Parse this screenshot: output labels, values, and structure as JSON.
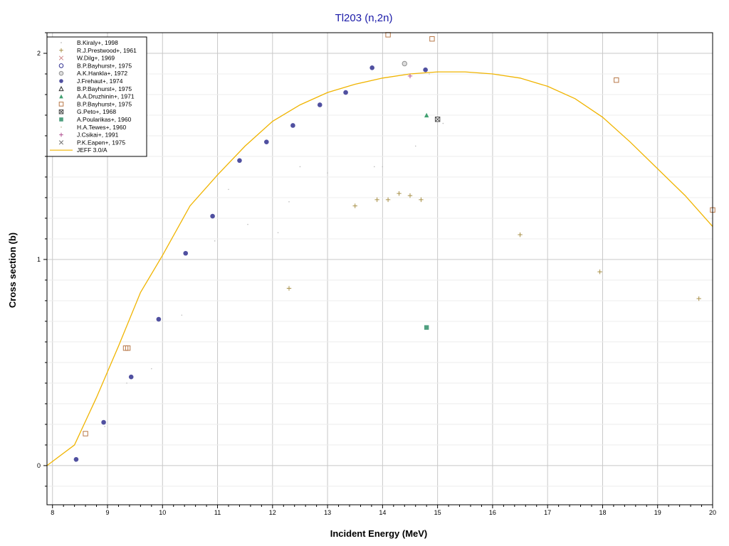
{
  "chart_data": {
    "type": "scatter",
    "title": "Tl203 (n,2n)",
    "xlabel": "Incident Energy (MeV)",
    "ylabel": "Cross section (b)",
    "xlim": [
      7.9,
      20
    ],
    "ylim": [
      -0.19,
      2.1
    ],
    "x_ticks": [
      "8",
      "9",
      "10",
      "11",
      "12",
      "13",
      "14",
      "15",
      "16",
      "17",
      "18",
      "19",
      "20"
    ],
    "y_ticks": [
      "0",
      "1",
      "2"
    ],
    "grid": true,
    "legend_position": "top-left",
    "colors": {
      "title": "#1a1aa8",
      "grid": "#c8c8c8",
      "axis": "#000000"
    },
    "series": [
      {
        "name": "B.Kiraly+, 1998",
        "marker": "dot",
        "color": "#bcbcbc",
        "points": [
          [
            8.42,
            0.02
          ],
          [
            8.95,
            0.19
          ],
          [
            9.35,
            0.4
          ],
          [
            9.8,
            0.47
          ],
          [
            10.35,
            0.73
          ],
          [
            10.95,
            1.09
          ],
          [
            11.2,
            1.34
          ],
          [
            11.55,
            1.17
          ],
          [
            12.1,
            1.13
          ],
          [
            12.3,
            1.28
          ],
          [
            12.5,
            1.45
          ],
          [
            13.0,
            1.42
          ],
          [
            13.85,
            1.45
          ],
          [
            14.0,
            1.45
          ],
          [
            14.6,
            1.55
          ],
          [
            14.85,
            1.9
          ],
          [
            15.1,
            1.66
          ]
        ]
      },
      {
        "name": "R.J.Prestwood+, 1961",
        "marker": "plus",
        "color": "#a89048",
        "points": [
          [
            12.3,
            0.86
          ],
          [
            13.5,
            1.26
          ],
          [
            13.9,
            1.29
          ],
          [
            14.1,
            1.29
          ],
          [
            14.3,
            1.32
          ],
          [
            14.5,
            1.31
          ],
          [
            14.7,
            1.29
          ],
          [
            16.5,
            1.12
          ],
          [
            17.95,
            0.94
          ],
          [
            19.75,
            0.81
          ]
        ]
      },
      {
        "name": "W.Dilg+, 1969",
        "marker": "x",
        "color": "#d08a8a",
        "points": []
      },
      {
        "name": "B.P.Bayhurst+, 1975",
        "marker": "circle-open",
        "color": "#303090",
        "points": []
      },
      {
        "name": "A.K.Hankla+, 1972",
        "marker": "circle-hatch",
        "color": "#909090",
        "points": [
          [
            14.4,
            1.95
          ]
        ]
      },
      {
        "name": "J.Frehaut+, 1974",
        "marker": "circle-filled",
        "color": "#5050a0",
        "points": [
          [
            8.43,
            0.03
          ],
          [
            8.93,
            0.21
          ],
          [
            9.43,
            0.43
          ],
          [
            9.93,
            0.71
          ],
          [
            10.42,
            1.03
          ],
          [
            10.91,
            1.21
          ],
          [
            11.4,
            1.48
          ],
          [
            11.89,
            1.57
          ],
          [
            12.37,
            1.65
          ],
          [
            12.86,
            1.75
          ],
          [
            13.33,
            1.81
          ],
          [
            13.81,
            1.93
          ],
          [
            14.78,
            1.92
          ]
        ]
      },
      {
        "name": "B.P.Bayhurst+, 1975",
        "marker": "triangle-open",
        "color": "#303030",
        "points": []
      },
      {
        "name": "A.A.Druzhinin+, 1971",
        "marker": "triangle-filled",
        "color": "#40a070",
        "points": [
          [
            14.8,
            1.7
          ]
        ]
      },
      {
        "name": "B.P.Bayhurst+, 1975",
        "marker": "square-open",
        "color": "#b87848",
        "points": [
          [
            8.6,
            0.155
          ],
          [
            9.33,
            0.57
          ],
          [
            9.37,
            0.57
          ],
          [
            14.1,
            2.09
          ],
          [
            14.9,
            2.07
          ],
          [
            18.25,
            1.87
          ],
          [
            20.0,
            1.24
          ]
        ]
      },
      {
        "name": "G.Peto+, 1968",
        "marker": "square-x",
        "color": "#505050",
        "points": [
          [
            15.0,
            1.68
          ]
        ]
      },
      {
        "name": "A.Poularikas+, 1960",
        "marker": "square-filled",
        "color": "#50a080",
        "points": [
          [
            14.8,
            0.67
          ]
        ]
      },
      {
        "name": "H.A.Tewes+, 1960",
        "marker": "dot",
        "color": "#c8c0a0",
        "points": []
      },
      {
        "name": "J.Csikai+, 1991",
        "marker": "plus",
        "color": "#b05090",
        "points": [
          [
            14.5,
            1.89
          ]
        ]
      },
      {
        "name": "P.K.Eapen+, 1975",
        "marker": "x",
        "color": "#707070",
        "points": []
      },
      {
        "name": "JEFF 3.0/A",
        "marker": "line",
        "color": "#f0b400",
        "points": [
          [
            7.9,
            0.0
          ],
          [
            8.4,
            0.1
          ],
          [
            8.8,
            0.33
          ],
          [
            9.2,
            0.58
          ],
          [
            9.6,
            0.84
          ],
          [
            10.0,
            1.02
          ],
          [
            10.5,
            1.26
          ],
          [
            11.0,
            1.41
          ],
          [
            11.5,
            1.55
          ],
          [
            12.0,
            1.67
          ],
          [
            12.5,
            1.75
          ],
          [
            13.0,
            1.81
          ],
          [
            13.5,
            1.85
          ],
          [
            14.0,
            1.88
          ],
          [
            14.5,
            1.9
          ],
          [
            15.0,
            1.91
          ],
          [
            15.5,
            1.91
          ],
          [
            16.0,
            1.9
          ],
          [
            16.5,
            1.88
          ],
          [
            17.0,
            1.84
          ],
          [
            17.5,
            1.78
          ],
          [
            18.0,
            1.69
          ],
          [
            18.5,
            1.57
          ],
          [
            19.0,
            1.44
          ],
          [
            19.5,
            1.31
          ],
          [
            20.0,
            1.16
          ]
        ]
      }
    ]
  }
}
